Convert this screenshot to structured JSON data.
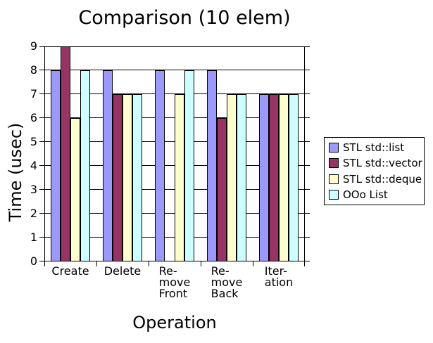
{
  "chart_data": {
    "type": "bar",
    "title": "Comparison (10 elem)",
    "xlabel": "Operation",
    "ylabel": "Time (usec)",
    "ylim": [
      0,
      9
    ],
    "yticks": [
      0,
      1,
      2,
      3,
      4,
      5,
      6,
      7,
      8,
      9
    ],
    "grid": "horizontal",
    "legend_position": "right",
    "background_color": "#ffffff",
    "axis_color": "#000000",
    "categories": [
      "Create",
      "Delete",
      "Re-move Front",
      "Re-move Back",
      "Iter-ation"
    ],
    "category_label_lines": [
      [
        "Create"
      ],
      [
        "Delete"
      ],
      [
        "Re-",
        "move",
        "Front"
      ],
      [
        "Re-",
        "move",
        "Back"
      ],
      [
        "Iter-",
        "ation"
      ]
    ],
    "series": [
      {
        "name": "STL std::list",
        "color": "#9999FF",
        "values": [
          8,
          8,
          8,
          8,
          7
        ]
      },
      {
        "name": "STL std::vector",
        "color": "#993366",
        "values": [
          9,
          7,
          0,
          6,
          7
        ]
      },
      {
        "name": "STL std::deque",
        "color": "#FFFFCC",
        "values": [
          6,
          7,
          7,
          7,
          7
        ]
      },
      {
        "name": "OOo List",
        "color": "#CCFFFF",
        "values": [
          8,
          7,
          8,
          7,
          7
        ]
      }
    ]
  }
}
